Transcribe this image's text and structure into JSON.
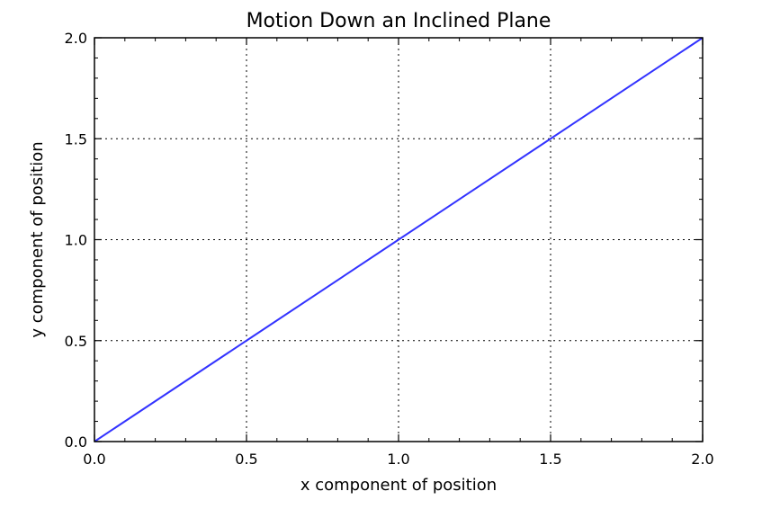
{
  "chart_data": {
    "type": "line",
    "title": "Motion Down an Inclined Plane",
    "xlabel": "x component of position",
    "ylabel": "y component of position",
    "xlim": [
      0.0,
      2.0
    ],
    "ylim": [
      0.0,
      2.0
    ],
    "x_ticks": [
      "0.0",
      "0.5",
      "1.0",
      "1.5",
      "2.0"
    ],
    "y_ticks": [
      "0.0",
      "0.5",
      "1.0",
      "1.5",
      "2.0"
    ],
    "grid": true,
    "grid_style": "dotted",
    "series": [
      {
        "color": "#3333ff",
        "x": [
          0.0,
          0.5,
          1.0,
          1.5,
          2.0
        ],
        "y": [
          0.0,
          0.5,
          1.0,
          1.5,
          2.0
        ]
      }
    ]
  }
}
